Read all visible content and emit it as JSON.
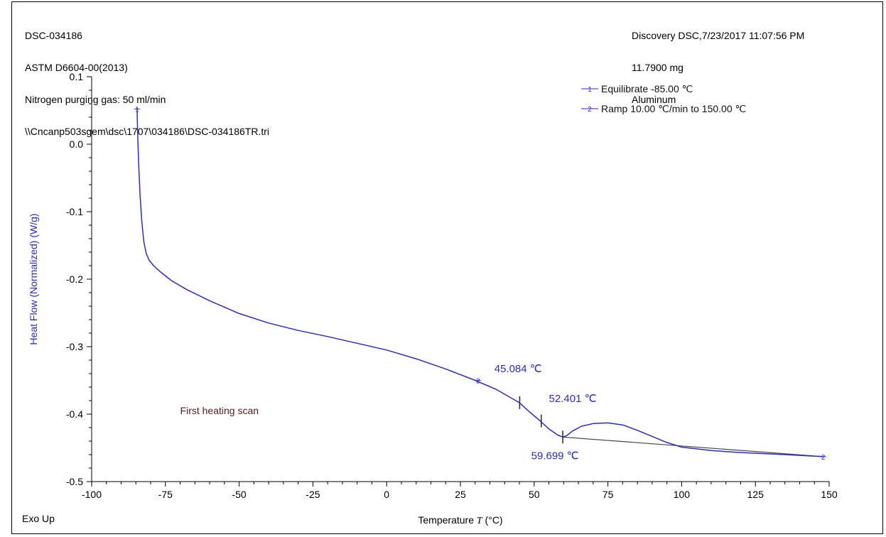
{
  "header": {
    "left": [
      "DSC-034186",
      "ASTM D6604-00(2013)",
      "Nitrogen purging gas: 50 ml/min",
      "\\\\Cncanp503sgem\\dsc\\1707\\034186\\DSC-034186TR.tri"
    ],
    "right": [
      "Discovery DSC,7/23/2017 11:07:56 PM",
      "11.7900 mg",
      "Aluminum"
    ]
  },
  "footer": {
    "exo_label": "Exo Up"
  },
  "colors": {
    "curve": "#2b2bd0",
    "baseline": "#444444",
    "axis": "#000000",
    "ylabel": "#2b2bd0",
    "note": "#5a1a1a"
  },
  "chart_data": {
    "type": "line",
    "xlabel": "Temperature  T (°C)",
    "xlabel_parts": {
      "main": "Temperature",
      "symbol": "T",
      "unit": "(°C)"
    },
    "ylabel": "Heat Flow (Normalized)  (W/g)",
    "xlim": [
      -100,
      150
    ],
    "ylim": [
      -0.5,
      0.1
    ],
    "x_ticks": [
      -100,
      -75,
      -50,
      -25,
      0,
      25,
      50,
      75,
      100,
      125,
      150
    ],
    "y_ticks": [
      0.1,
      0.0,
      -0.1,
      -0.2,
      -0.3,
      -0.4,
      -0.5
    ],
    "y_tick_labels": [
      "0.1",
      "0.0",
      "-0.1",
      "-0.2",
      "-0.3",
      "-0.4",
      "-0.5"
    ],
    "grid": false,
    "legend_position": "top-right",
    "legend": [
      {
        "marker": "1",
        "label": "Equilibrate -85.00 ℃"
      },
      {
        "marker": "2",
        "label": "Ramp 10.00 ℃/min to 150.00 ℃"
      }
    ],
    "series": [
      {
        "x": [
          -84.6,
          -84.5,
          -84.3,
          -84.0,
          -83.6,
          -83.0,
          -82.3,
          -81.5,
          -80.5,
          -79.0,
          -76.5,
          -73.0,
          -68.0,
          -60.0,
          -50.0,
          -40.0,
          -30.0,
          -20.0,
          -10.0,
          0.0,
          10.0,
          20.0,
          30.0,
          37.0,
          45.0,
          48.0,
          52.0,
          55.0,
          58.0,
          59.7,
          61.0,
          63.0,
          66.0,
          70.0,
          75.0,
          80.0,
          85.0,
          90.0,
          95.0,
          100.0,
          110.0,
          120.0,
          135.0,
          148.0
        ],
        "y": [
          0.055,
          0.03,
          0.0,
          -0.035,
          -0.075,
          -0.115,
          -0.145,
          -0.162,
          -0.172,
          -0.18,
          -0.19,
          -0.202,
          -0.215,
          -0.232,
          -0.251,
          -0.265,
          -0.276,
          -0.285,
          -0.295,
          -0.305,
          -0.318,
          -0.333,
          -0.35,
          -0.363,
          -0.383,
          -0.395,
          -0.41,
          -0.422,
          -0.431,
          -0.434,
          -0.432,
          -0.425,
          -0.418,
          -0.414,
          -0.413,
          -0.416,
          -0.424,
          -0.433,
          -0.442,
          -0.449,
          -0.454,
          -0.457,
          -0.46,
          -0.463
        ]
      }
    ],
    "baseline_segment": {
      "x": [
        59.7,
        148.0
      ],
      "y": [
        -0.434,
        -0.463
      ]
    },
    "method_markers": [
      {
        "label": "1",
        "x": -84.6,
        "y": 0.052
      },
      {
        "label": "2",
        "x": 31.0,
        "y": -0.35
      },
      {
        "label": "2",
        "x": 148.0,
        "y": -0.463
      }
    ],
    "tick_marks": [
      {
        "x": 45.084,
        "y": -0.383
      },
      {
        "x": 52.401,
        "y": -0.41
      },
      {
        "x": 59.699,
        "y": -0.434
      }
    ],
    "annotations": [
      {
        "text": "45.084 ℃",
        "x": 36.5,
        "y": -0.338
      },
      {
        "text": "52.401 ℃",
        "x": 55.0,
        "y": -0.382
      },
      {
        "text": "59.699 ℃",
        "x": 49.0,
        "y": -0.467
      }
    ],
    "notes": [
      {
        "text": "First heating scan",
        "x": -70.0,
        "y": -0.4
      }
    ]
  }
}
